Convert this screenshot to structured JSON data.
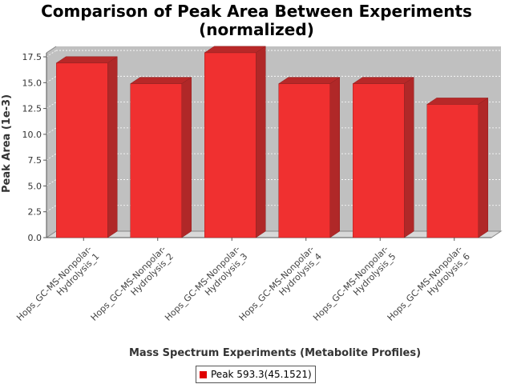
{
  "chart_data": {
    "type": "bar",
    "title_line1": "Comparison of Peak Area Between Experiments",
    "title_line2": "(normalized)",
    "xlabel": "Mass Spectrum Experiments (Metabolite Profiles)",
    "ylabel": "Peak Area (1e-3)",
    "categories": [
      [
        "Hops_GC-MS-Nonpolar-",
        "Hydrolysis_1"
      ],
      [
        "Hops_GC-MS-Nonpolar-",
        "Hydrolysis_2"
      ],
      [
        "Hops_GC-MS-Nonpolar-",
        "Hydrolysis_3"
      ],
      [
        "Hops_GC-MS-Nonpolar-",
        "Hydrolysis_4"
      ],
      [
        "Hops_GC-MS-Nonpolar-",
        "Hydrolysis_5"
      ],
      [
        "Hops_GC-MS-Nonpolar-",
        "Hydrolysis_6"
      ]
    ],
    "series": [
      {
        "name": "Peak 593.3(45.1521)",
        "values": [
          16.9,
          14.9,
          17.9,
          14.9,
          14.9,
          12.9
        ]
      }
    ],
    "ylim": [
      0,
      18.2
    ],
    "yticks": [
      "0.0",
      "2.5",
      "5.0",
      "7.5",
      "10.0",
      "12.5",
      "15.0",
      "17.5"
    ],
    "grid": true,
    "legend_position": "bottom",
    "colors": {
      "bar": "#f03030",
      "plot_bg": "#c0c0c0"
    }
  }
}
